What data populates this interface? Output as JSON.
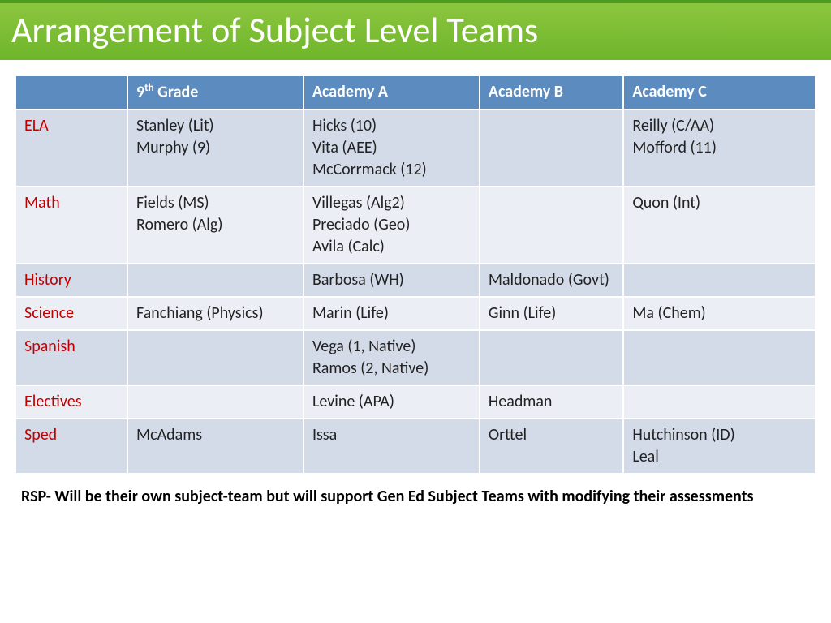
{
  "title": "Arrangement of Subject Level Teams",
  "columns": [
    "",
    "9th Grade",
    "Academy A",
    "Academy B",
    "Academy C"
  ],
  "rows": [
    {
      "label": "ELA",
      "cells": [
        "Stanley (Lit)\nMurphy (9)",
        "Hicks (10)\nVita (AEE)\nMcCorrmack (12)",
        "",
        "Reilly (C/AA)\nMofford (11)"
      ]
    },
    {
      "label": "Math",
      "cells": [
        "Fields (MS)\nRomero (Alg)",
        "Villegas (Alg2)\nPreciado (Geo)\nAvila (Calc)",
        "",
        "Quon (Int)"
      ]
    },
    {
      "label": "History",
      "cells": [
        "",
        " Barbosa  (WH)",
        "Maldonado (Govt)",
        ""
      ]
    },
    {
      "label": "Science",
      "cells": [
        "Fanchiang (Physics)",
        "Marin (Life)",
        "Ginn (Life)",
        "Ma (Chem)"
      ]
    },
    {
      "label": "Spanish",
      "cells": [
        "",
        "Vega (1, Native)\nRamos (2, Native)",
        "",
        ""
      ]
    },
    {
      "label": "Electives",
      "cells": [
        "",
        "Levine (APA)",
        " Headman",
        ""
      ]
    },
    {
      "label": "Sped",
      "cells": [
        "McAdams",
        "Issa",
        "Orttel",
        "Hutchinson (ID)\nLeal"
      ]
    }
  ],
  "footnote": "RSP- Will be their own subject-team but will support Gen Ed Subject Teams with modifying their assessments",
  "colors": {
    "title_bg_top": "#8cc63f",
    "title_bg_bottom": "#6eb52b",
    "header_bg": "#5b8bbf",
    "row_alt0": "#d3dbe9",
    "row_alt1": "#ebeef5",
    "row_label_color": "#c00000"
  }
}
